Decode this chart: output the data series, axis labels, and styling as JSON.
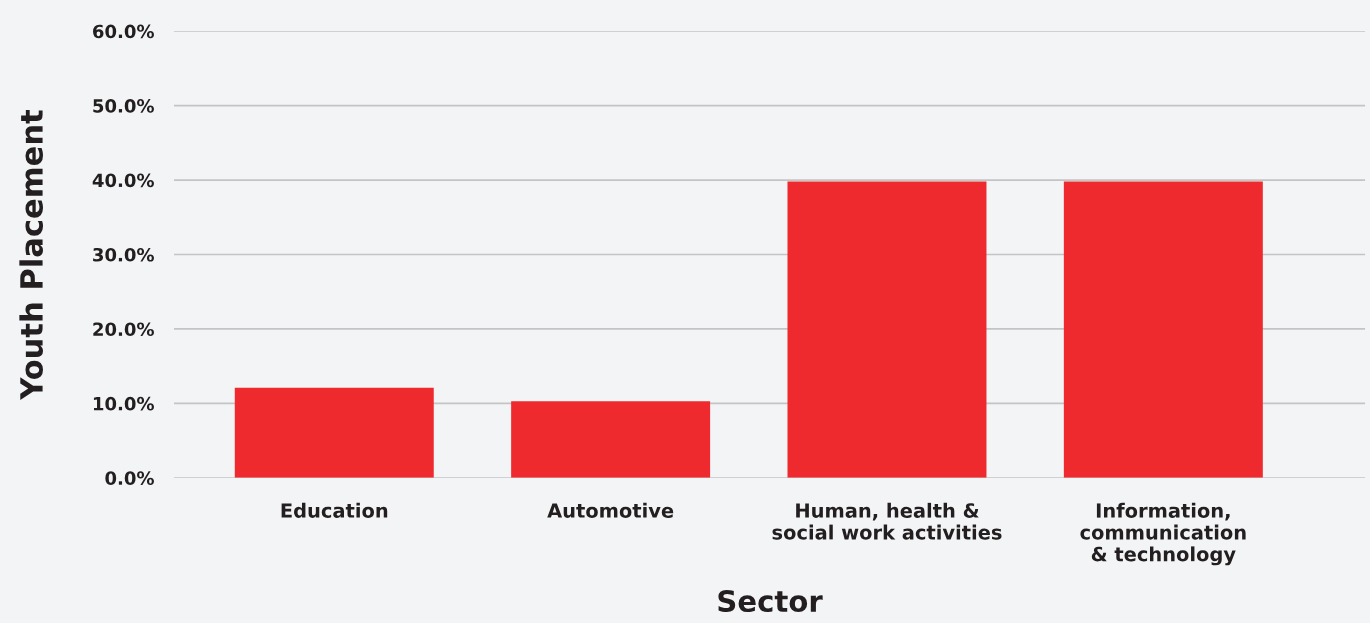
{
  "chart_data": {
    "type": "bar",
    "xlabel": "Sector",
    "ylabel": "Youth Placement",
    "categories": [
      "Education",
      "Automotive",
      "Human, health &\nsocial work activities",
      "Information,\ncommunication\n& technology"
    ],
    "values": [
      12.1,
      10.3,
      39.8,
      39.8
    ],
    "color": "#ee2a2e",
    "ylim": [
      0,
      60
    ],
    "yticks": [
      {
        "value": 0,
        "label": "0.0%"
      },
      {
        "value": 10,
        "label": "10.0%"
      },
      {
        "value": 20,
        "label": "20.0%"
      },
      {
        "value": 30,
        "label": "30.0%"
      },
      {
        "value": 40,
        "label": "40.0%"
      },
      {
        "value": 50,
        "label": "50.0%"
      },
      {
        "value": 60,
        "label": "60.0%"
      }
    ],
    "grid": "y",
    "legend": false
  }
}
